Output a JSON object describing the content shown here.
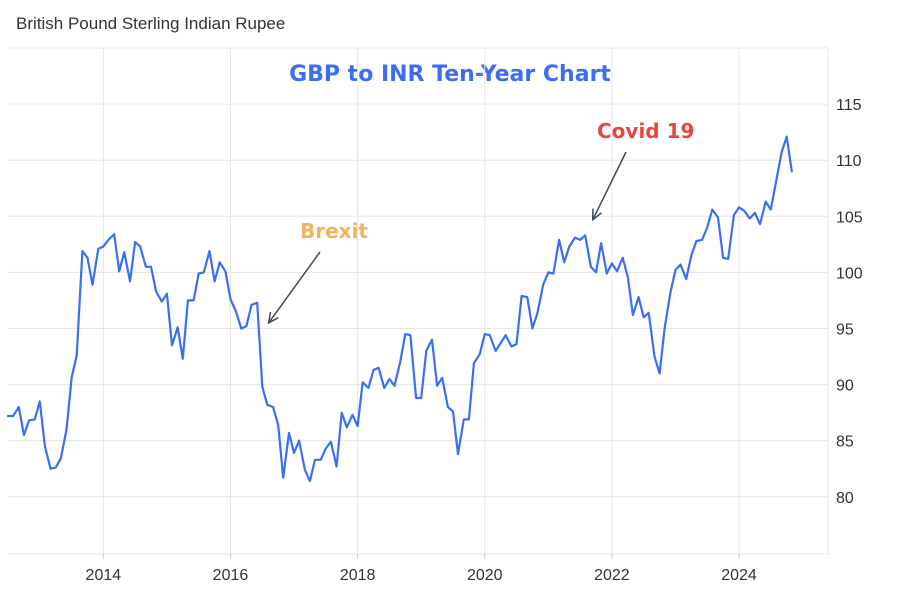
{
  "header": {
    "title": "British Pound Sterling Indian Rupee"
  },
  "colors": {
    "line": "#3a6ff0",
    "title": "#3d6ef0",
    "brexit": "#f2b35b",
    "covid": "#e8453c",
    "grid": "#e6e6e6",
    "arrow": "#3f4a57"
  },
  "chart_data": {
    "type": "line",
    "title": "GBP to INR Ten-Year Chart",
    "xlabel": "",
    "ylabel": "",
    "x_ticks": [
      "2014",
      "2016",
      "2018",
      "2020",
      "2022",
      "2024"
    ],
    "y_ticks": [
      80,
      85,
      90,
      95,
      100,
      105,
      110,
      115
    ],
    "ylim": [
      74.9,
      120
    ],
    "xlim": [
      2012.5,
      2025.4
    ],
    "grid": true,
    "annotations": [
      {
        "text": "Brexit",
        "x": 2016.6,
        "y": 95.5
      },
      {
        "text": "Covid 19",
        "x": 2021.7,
        "y": 104.7
      }
    ],
    "series": [
      {
        "x": [
          2012.5,
          2012.58,
          2012.67,
          2012.75,
          2012.83,
          2012.92,
          2013.0,
          2013.08,
          2013.17,
          2013.25,
          2013.33,
          2013.42,
          2013.5,
          2013.58,
          2013.67,
          2013.75,
          2013.83,
          2013.92,
          2014.0,
          2014.08,
          2014.17,
          2014.25,
          2014.33,
          2014.42,
          2014.5,
          2014.58,
          2014.67,
          2014.75,
          2014.83,
          2014.92,
          2015.0,
          2015.08,
          2015.17,
          2015.25,
          2015.33,
          2015.42,
          2015.5,
          2015.58,
          2015.67,
          2015.75,
          2015.83,
          2015.92,
          2016.0,
          2016.08,
          2016.17,
          2016.25,
          2016.33,
          2016.42,
          2016.5,
          2016.58,
          2016.67,
          2016.75,
          2016.83,
          2016.92,
          2017.0,
          2017.08,
          2017.17,
          2017.25,
          2017.33,
          2017.42,
          2017.5,
          2017.58,
          2017.67,
          2017.75,
          2017.83,
          2017.92,
          2018.0,
          2018.08,
          2018.17,
          2018.25,
          2018.33,
          2018.42,
          2018.5,
          2018.58,
          2018.67,
          2018.75,
          2018.83,
          2018.92,
          2019.0,
          2019.08,
          2019.17,
          2019.25,
          2019.33,
          2019.42,
          2019.5,
          2019.58,
          2019.67,
          2019.75,
          2019.83,
          2019.92,
          2020.0,
          2020.08,
          2020.17,
          2020.25,
          2020.33,
          2020.42,
          2020.5,
          2020.58,
          2020.67,
          2020.75,
          2020.83,
          2020.92,
          2021.0,
          2021.08,
          2021.17,
          2021.25,
          2021.33,
          2021.42,
          2021.5,
          2021.58,
          2021.67,
          2021.75,
          2021.83,
          2021.92,
          2022.0,
          2022.08,
          2022.17,
          2022.25,
          2022.33,
          2022.42,
          2022.5,
          2022.58,
          2022.67,
          2022.75,
          2022.83,
          2022.92,
          2023.0,
          2023.08,
          2023.17,
          2023.25,
          2023.33,
          2023.42,
          2023.5,
          2023.58,
          2023.67,
          2023.75,
          2023.83,
          2023.92,
          2024.0,
          2024.08,
          2024.17,
          2024.25,
          2024.33,
          2024.42,
          2024.5,
          2024.58,
          2024.67,
          2024.75,
          2024.83
        ],
        "values": [
          87.2,
          87.2,
          88.0,
          85.5,
          86.8,
          86.9,
          88.5,
          84.5,
          82.5,
          82.6,
          83.4,
          86.0,
          90.6,
          92.6,
          101.9,
          101.3,
          98.9,
          102.1,
          102.3,
          102.9,
          103.4,
          100.1,
          101.8,
          99.2,
          102.7,
          102.3,
          100.5,
          100.5,
          98.3,
          97.4,
          98.1,
          93.5,
          95.1,
          92.3,
          97.5,
          97.5,
          99.9,
          100.0,
          101.9,
          99.2,
          100.9,
          100.1,
          97.6,
          96.6,
          95.0,
          95.2,
          97.1,
          97.3,
          89.8,
          88.2,
          88.0,
          86.4,
          81.7,
          85.7,
          83.9,
          85.0,
          82.4,
          81.4,
          83.3,
          83.3,
          84.3,
          84.9,
          82.7,
          87.5,
          86.2,
          87.3,
          86.3,
          90.2,
          89.7,
          91.3,
          91.5,
          89.7,
          90.5,
          89.9,
          92.0,
          94.5,
          94.4,
          88.8,
          88.8,
          93.0,
          94.0,
          89.9,
          90.6,
          88.0,
          87.6,
          83.8,
          86.9,
          86.9,
          91.9,
          92.7,
          94.5,
          94.4,
          93.0,
          93.7,
          94.4,
          93.4,
          93.6,
          97.9,
          97.8,
          95.0,
          96.4,
          98.9,
          100.0,
          99.9,
          102.9,
          100.9,
          102.3,
          103.1,
          102.9,
          103.3,
          100.5,
          100.0,
          102.6,
          99.9,
          100.8,
          100.1,
          101.3,
          99.6,
          96.2,
          97.8,
          96.0,
          96.4,
          92.5,
          91.0,
          95.0,
          98.2,
          100.2,
          100.7,
          99.4,
          101.5,
          102.8,
          102.9,
          104.0,
          105.6,
          104.9,
          101.3,
          101.2,
          105.1,
          105.8,
          105.5,
          104.8,
          105.3,
          104.3,
          106.3,
          105.6,
          108.0,
          110.7,
          112.1,
          109.0
        ]
      }
    ]
  }
}
